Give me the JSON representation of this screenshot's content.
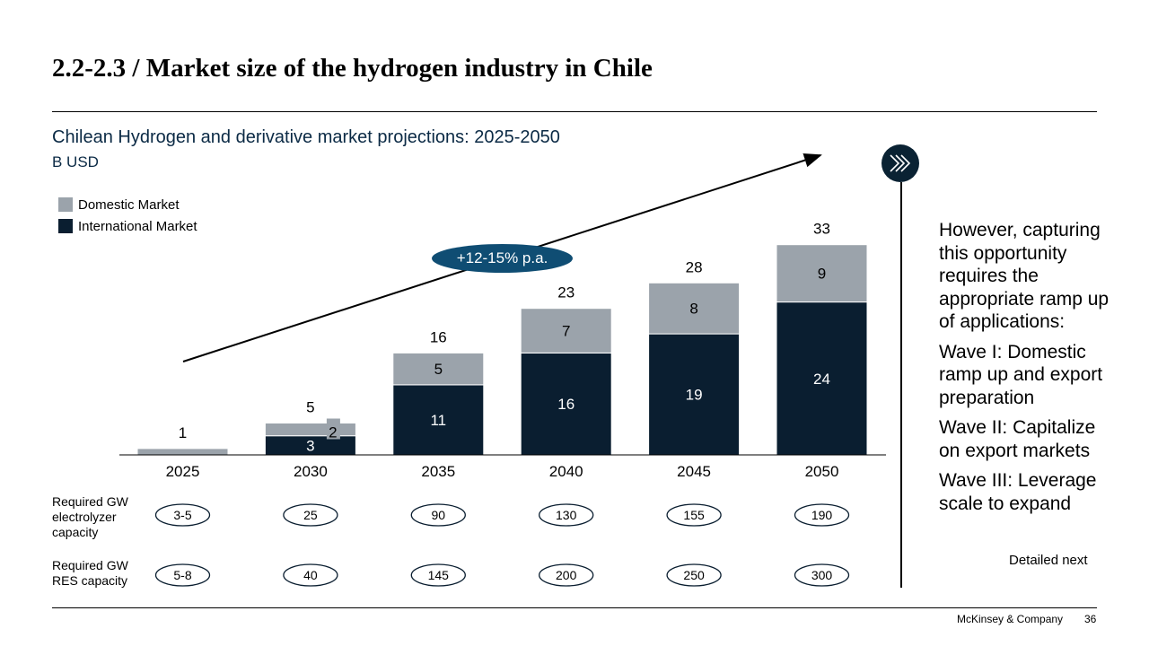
{
  "page": {
    "title": "2.2-2.3 / Market size of the hydrogen industry in Chile"
  },
  "chart_data": {
    "type": "bar",
    "stacked": true,
    "title": "Chilean Hydrogen and derivative market projections: 2025-2050",
    "unit": "B USD",
    "categories": [
      "2025",
      "2030",
      "2035",
      "2040",
      "2045",
      "2050"
    ],
    "series": [
      {
        "name": "International Market",
        "color": "#0a1e30",
        "values": [
          0,
          3,
          11,
          16,
          19,
          24
        ],
        "labels": [
          "",
          "3",
          "11",
          "16",
          "19",
          "24"
        ]
      },
      {
        "name": "Domestic Market",
        "color": "#9ba3ab",
        "values": [
          1,
          2,
          5,
          7,
          8,
          9
        ],
        "labels": [
          "",
          "2",
          "5",
          "7",
          "8",
          "9"
        ]
      }
    ],
    "totals": [
      "1",
      "5",
      "16",
      "23",
      "28",
      "33"
    ],
    "legend_position": "top-left",
    "ylim": [
      0,
      33
    ],
    "grid": false,
    "annotation": "+12-15% p.a."
  },
  "capacity_rows": [
    {
      "label": "Required GW electrolyzer capacity",
      "values": [
        "3-5",
        "25",
        "90",
        "130",
        "155",
        "190"
      ]
    },
    {
      "label": "Required GW RES capacity",
      "values": [
        "5-8",
        "40",
        "145",
        "200",
        "250",
        "300"
      ]
    }
  ],
  "side_panel": {
    "paragraphs": [
      "However, capturing this opportunity requires the appropriate ramp up of applications:",
      "Wave I: Domestic ramp up and export preparation",
      "Wave II: Capitalize on export markets",
      "Wave III: Leverage scale to expand"
    ],
    "detailed_next": "Detailed next"
  },
  "icons": {
    "next": "chevrons-right-icon"
  },
  "footer": {
    "brand": "McKinsey & Company",
    "page_number": "36"
  }
}
